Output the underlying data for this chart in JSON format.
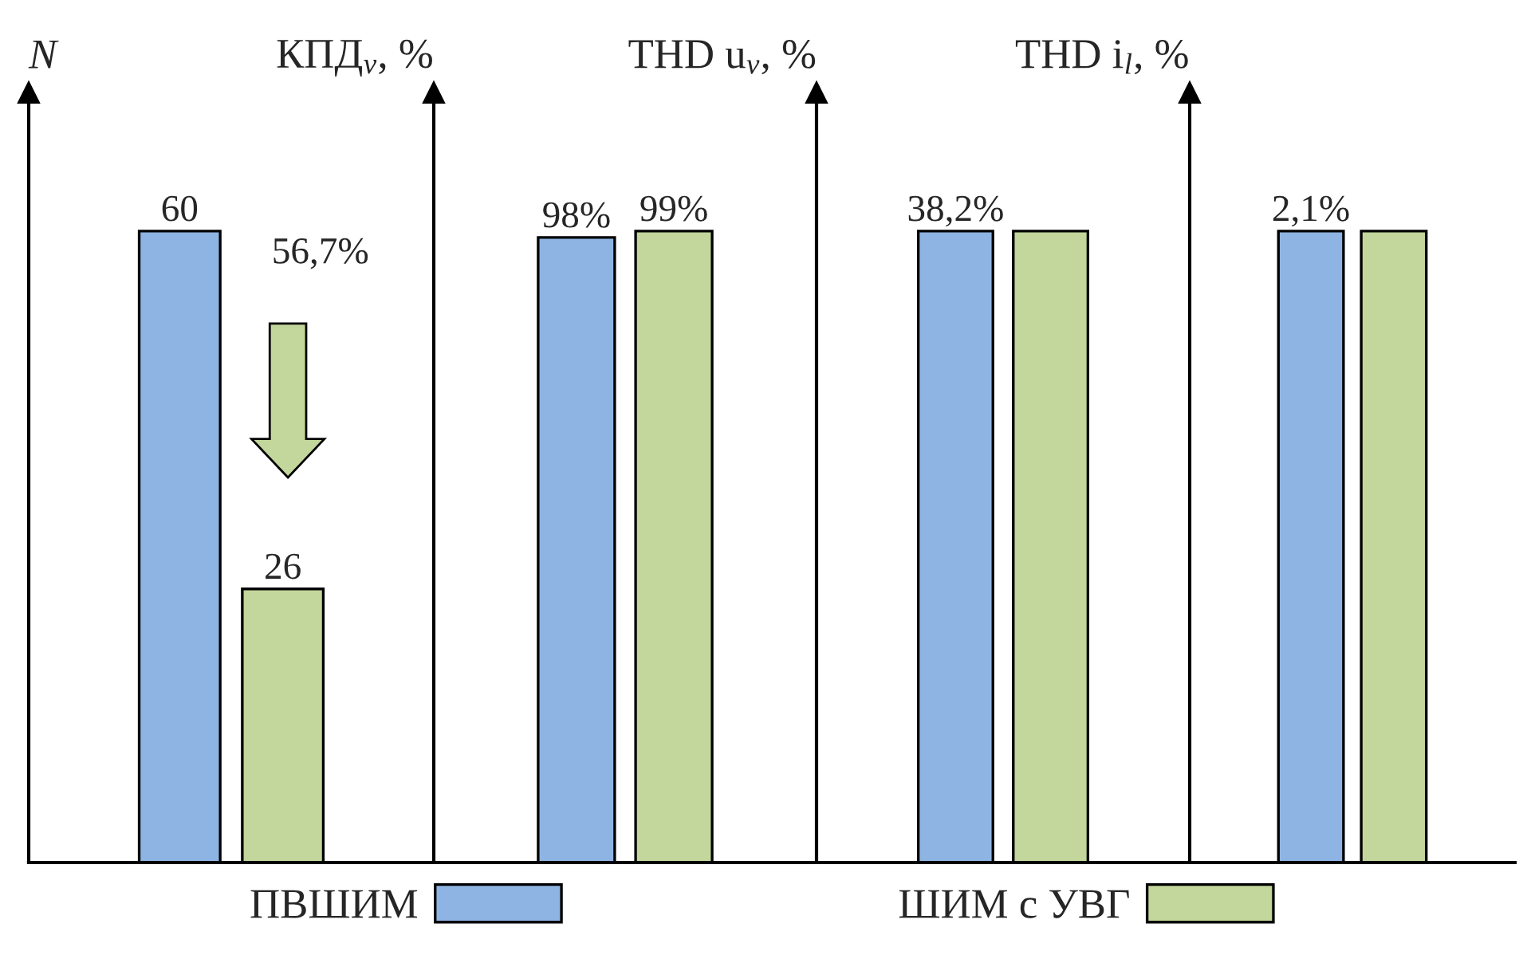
{
  "chart_data": [
    {
      "type": "bar",
      "ylabel": "N",
      "categories": [
        null
      ],
      "data_labels": true,
      "legend": "bottom",
      "series": [
        {
          "name": "ПВШИМ",
          "color": "#8eb4e3",
          "values": [
            60
          ]
        },
        {
          "name": "ШИМ с УВГ",
          "color": "#c3d69b",
          "values": [
            26
          ]
        }
      ],
      "annotations": [
        "56,7%"
      ]
    },
    {
      "type": "bar",
      "ylabel": "КПД$_{v}$, %",
      "categories": [
        null
      ],
      "series": [
        {
          "color": "#8eb4e3",
          "values": [
            98
          ],
          "value_labels": [
            "98%"
          ]
        },
        {
          "color": "#c3d69b",
          "values": [
            99
          ],
          "value_labels": [
            "99%"
          ]
        }
      ]
    },
    {
      "type": "bar",
      "ylabel": "THD u$_{v}$, %",
      "categories": [
        null
      ],
      "series": [
        {
          "color": "#8eb4e3",
          "values": [
            38.2
          ],
          "value_labels": [
            "38,2%"
          ]
        },
        {
          "color": "#c3d69b",
          "values": [
            38.2
          ],
          "value_labels": [
            null
          ]
        }
      ]
    },
    {
      "type": "bar",
      "ylabel": "THD i$_{l}$, %",
      "categories": [
        null
      ],
      "series": [
        {
          "color": "#8eb4e3",
          "values": [
            2.1
          ],
          "value_labels": [
            "2,1%"
          ]
        },
        {
          "color": "#c3d69b",
          "values": [
            2.1
          ],
          "value_labels": [
            null
          ]
        }
      ]
    }
  ]
}
